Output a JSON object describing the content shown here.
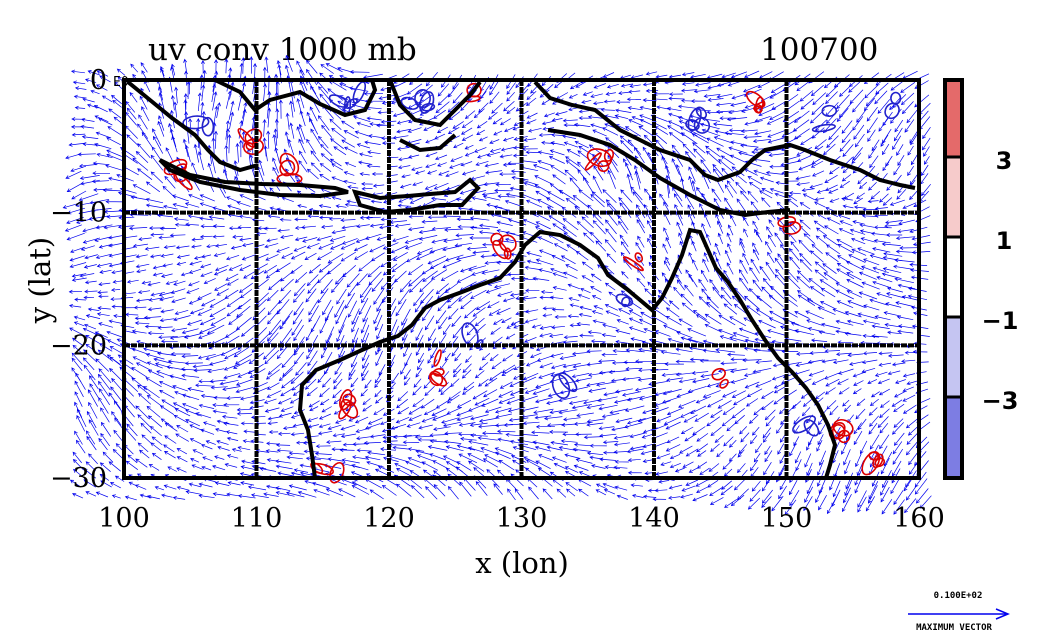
{
  "title_left": "uv conv 1000 mb",
  "title_right": "100700",
  "axis": {
    "xlabel": "x (lon)",
    "ylabel": "y (lat)",
    "x_ticks": [
      "100",
      "110",
      "120",
      "130",
      "140",
      "150",
      "160"
    ],
    "y_ticks": [
      "0",
      "−10",
      "−20",
      "−30"
    ],
    "y_tick_suffix": "E0",
    "lon_range": [
      100,
      160
    ],
    "lat_range": [
      -30,
      0
    ],
    "grid_lon": [
      110,
      120,
      130,
      140,
      150
    ],
    "grid_lat": [
      -10,
      -20
    ]
  },
  "colorbar": {
    "labels": [
      "3",
      "1",
      "−1",
      "−3"
    ],
    "levels": [
      3,
      1,
      -1,
      -3
    ],
    "colors": {
      "pos_strong": "#e46a6a",
      "pos_weak": "#f6cbcb",
      "neutral": "#ffffff",
      "neg_weak": "#c5c5f2",
      "neg_strong": "#7d7de3"
    }
  },
  "reference_vector": {
    "value": "0.100E+02",
    "label": "MAXIMUM VECTOR"
  },
  "colors": {
    "vector": "#0000ee",
    "convergence_contour": "#dd0000",
    "divergence_contour": "#2222cc",
    "coastline": "#000000"
  }
}
